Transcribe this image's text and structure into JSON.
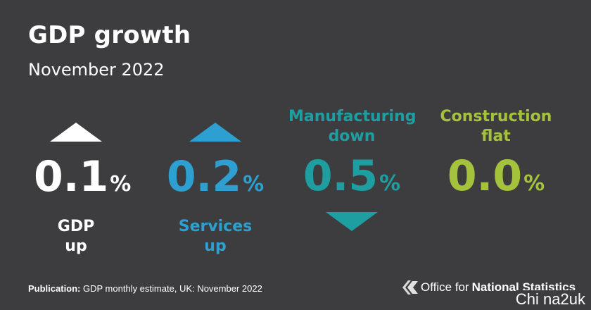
{
  "title": "GDP growth",
  "subtitle": "November 2022",
  "tiles": [
    {
      "id": "gdp",
      "value": "0.1",
      "unit": "%",
      "label_line1": "GDP",
      "label_line2": "up",
      "direction": "up",
      "color": "#ffffff"
    },
    {
      "id": "services",
      "value": "0.2",
      "unit": "%",
      "label_line1": "Services",
      "label_line2": "up",
      "direction": "up",
      "color": "#2d9fd0"
    },
    {
      "id": "manufacturing",
      "value": "0.5",
      "unit": "%",
      "label_line1": "Manufacturing",
      "label_line2": "down",
      "direction": "down",
      "color": "#1f9ea2"
    },
    {
      "id": "construction",
      "value": "0.0",
      "unit": "%",
      "label_line1": "Construction",
      "label_line2": "flat",
      "direction": "flat",
      "color": "#a4c23c"
    }
  ],
  "footer": {
    "prefix": "Publication:",
    "text": " GDP monthly estimate, UK: November 2022"
  },
  "logo": {
    "text_normal": "Office for",
    "text_bold": "National Statistics",
    "icon": "ons-logo-icon"
  },
  "watermark": "Chi na2uk"
}
